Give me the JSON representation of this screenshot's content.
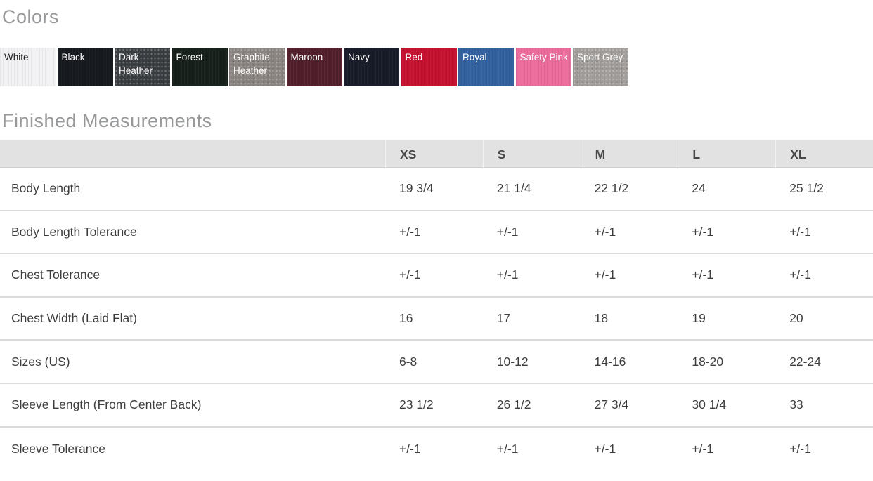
{
  "colors_section": {
    "title": "Colors",
    "swatches": [
      {
        "label": "White",
        "color": "#f2f2f4",
        "text_color": "#1c1c1c",
        "heather": false
      },
      {
        "label": "Black",
        "color": "#16191d",
        "text_color": "#ffffff",
        "heather": false
      },
      {
        "label": "Dark Heather",
        "color": "#3a3d41",
        "text_color": "#ffffff",
        "heather": true
      },
      {
        "label": "Forest",
        "color": "#17201a",
        "text_color": "#ffffff",
        "heather": false
      },
      {
        "label": "Graphite Heather",
        "color": "#8b8582",
        "text_color": "#ffffff",
        "heather": true
      },
      {
        "label": "Maroon",
        "color": "#511f2b",
        "text_color": "#ffffff",
        "heather": false
      },
      {
        "label": "Navy",
        "color": "#181c29",
        "text_color": "#ffffff",
        "heather": false
      },
      {
        "label": "Red",
        "color": "#c41230",
        "text_color": "#ffffff",
        "heather": false
      },
      {
        "label": "Royal",
        "color": "#33619f",
        "text_color": "#ffffff",
        "heather": false
      },
      {
        "label": "Safety Pink",
        "color": "#ec6c9c",
        "text_color": "#ffffff",
        "heather": false
      },
      {
        "label": "Sport Grey",
        "color": "#a29e9b",
        "text_color": "#ffffff",
        "heather": true
      }
    ]
  },
  "measurements_section": {
    "title": "Finished Measurements",
    "table": {
      "columns": [
        "XS",
        "S",
        "M",
        "L",
        "XL"
      ],
      "rows": [
        {
          "label": "Body Length",
          "values": [
            "19 3/4",
            "21 1/4",
            "22 1/2",
            "24",
            "25 1/2"
          ]
        },
        {
          "label": "Body Length Tolerance",
          "values": [
            "+/-1",
            "+/-1",
            "+/-1",
            "+/-1",
            "+/-1"
          ]
        },
        {
          "label": "Chest Tolerance",
          "values": [
            "+/-1",
            "+/-1",
            "+/-1",
            "+/-1",
            "+/-1"
          ]
        },
        {
          "label": "Chest Width (Laid Flat)",
          "values": [
            "16",
            "17",
            "18",
            "19",
            "20"
          ]
        },
        {
          "label": "Sizes (US)",
          "values": [
            "6-8",
            "10-12",
            "14-16",
            "18-20",
            "22-24"
          ]
        },
        {
          "label": "Sleeve Length (From Center Back)",
          "values": [
            "23 1/2",
            "26 1/2",
            "27 3/4",
            "30 1/4",
            "33"
          ]
        },
        {
          "label": "Sleeve Tolerance",
          "values": [
            "+/-1",
            "+/-1",
            "+/-1",
            "+/-1",
            "+/-1"
          ]
        }
      ]
    }
  }
}
